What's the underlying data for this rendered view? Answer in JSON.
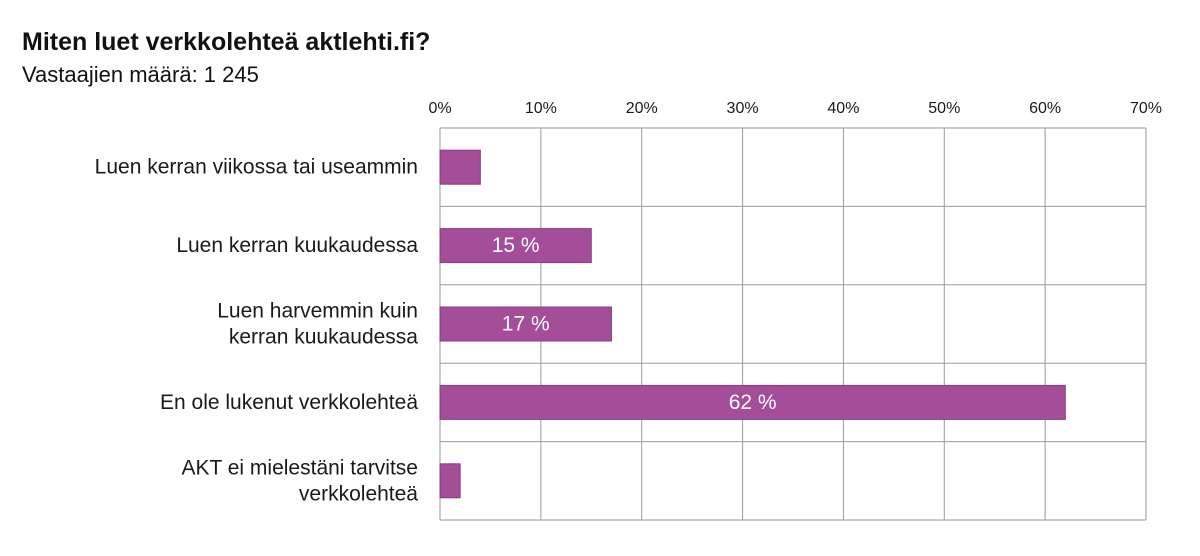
{
  "title": "Miten luet verkkolehteä aktlehti.fi?",
  "subtitle": "Vastaajien määrä: 1 245",
  "colors": {
    "bar": "#a44d99",
    "bar_stroke": "#8a3c80",
    "grid": "#9a9a9a",
    "label": "#1a1a1a",
    "value_label": "#ffffff"
  },
  "chart_data": {
    "type": "bar",
    "orientation": "horizontal",
    "categories": [
      [
        "Luen kerran viikossa tai useammin"
      ],
      [
        "Luen kerran kuukaudessa"
      ],
      [
        "Luen harvemmin kuin",
        "kerran kuukaudessa"
      ],
      [
        "En ole lukenut verkkolehteä"
      ],
      [
        "AKT ei mielestäni tarvitse",
        "verkkolehteä"
      ]
    ],
    "values": [
      4,
      15,
      17,
      62,
      2
    ],
    "value_labels": [
      "",
      "15 %",
      "17 %",
      "62 %",
      ""
    ],
    "xlim": [
      0,
      70
    ],
    "xticks": [
      0,
      10,
      20,
      30,
      40,
      50,
      60,
      70
    ],
    "xtick_labels": [
      "0%",
      "10%",
      "20%",
      "30%",
      "40%",
      "50%",
      "60%",
      "70%"
    ],
    "x_axis_position": "top",
    "grid": true,
    "legend": "none"
  }
}
